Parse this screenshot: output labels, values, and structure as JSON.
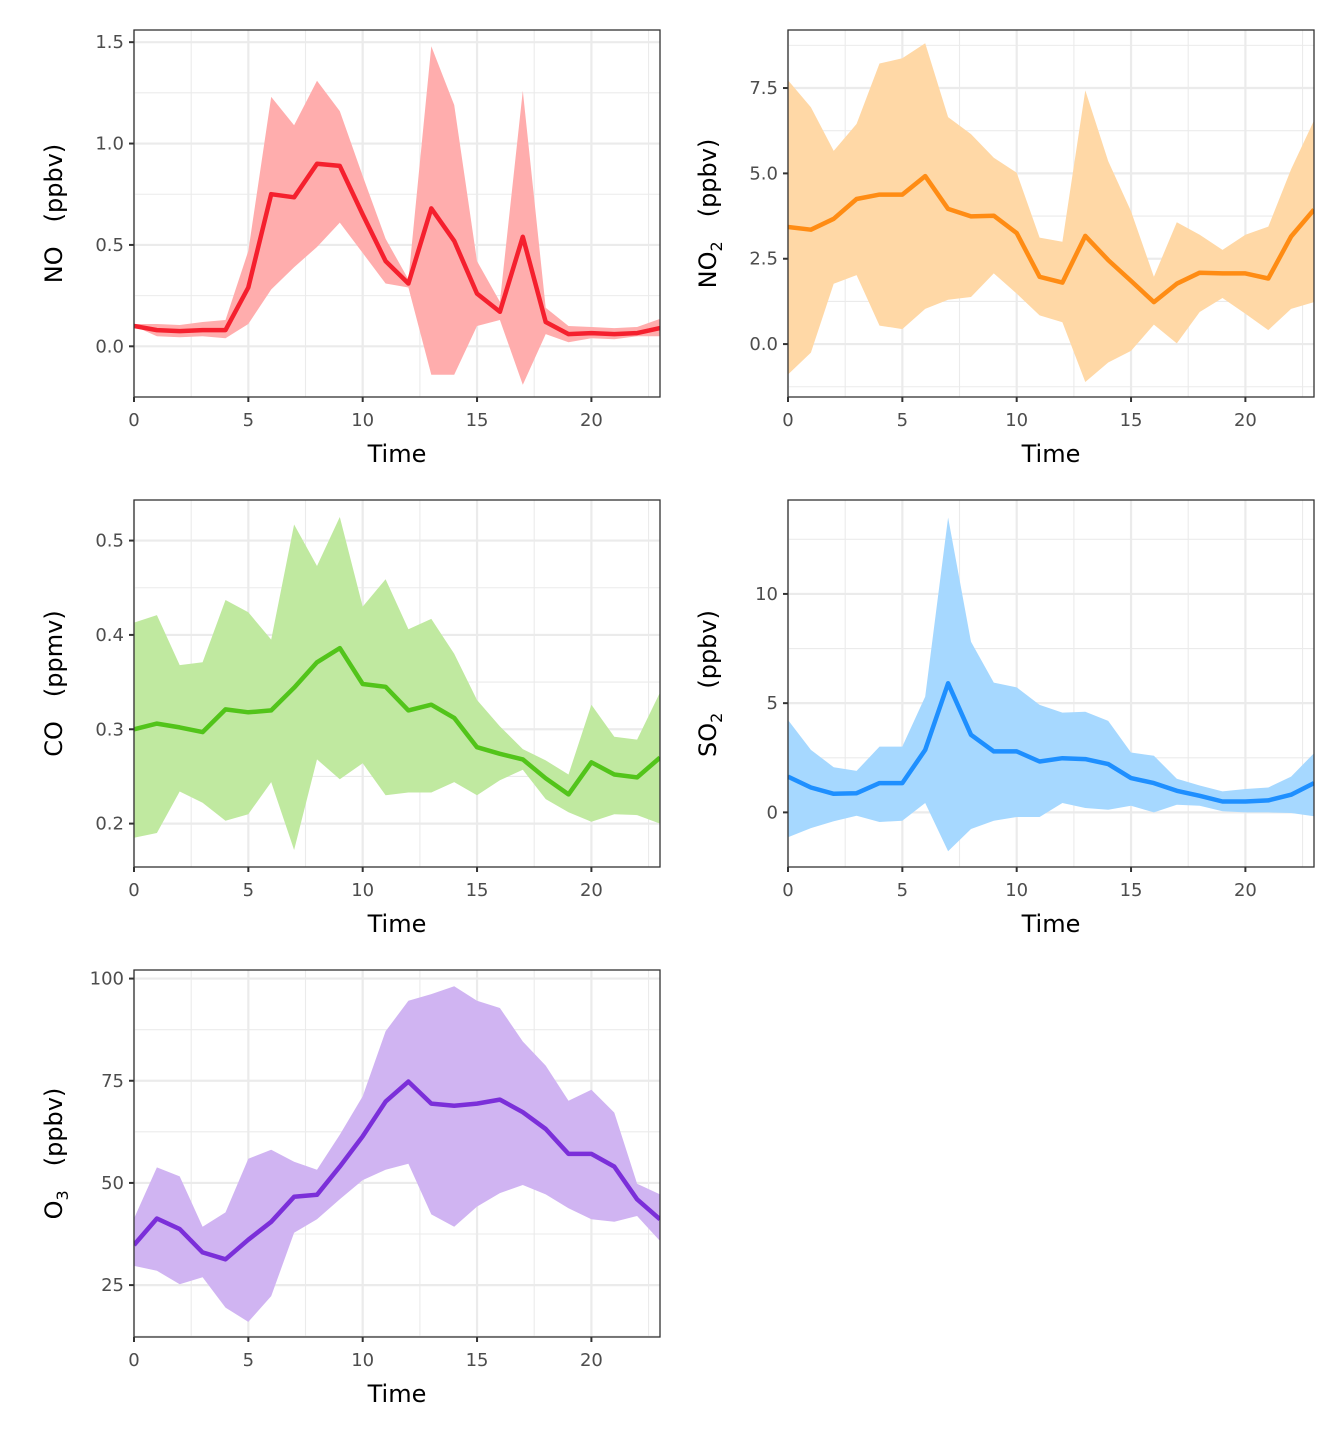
{
  "chart_data": [
    {
      "type": "line",
      "panel": "NO",
      "ylabel_species": "NO",
      "ylabel_subscript": "",
      "ylabel_unit": "(ppbv)",
      "xlabel": "Time",
      "xlim": [
        0,
        23
      ],
      "ylim": [
        -0.25,
        1.56
      ],
      "xticks": [
        0,
        5,
        10,
        15,
        20
      ],
      "xtick_labels": [
        "0",
        "5",
        "10",
        "15",
        "20"
      ],
      "yticks": [
        0,
        0.5,
        1.0,
        1.5
      ],
      "ytick_labels": [
        "0.0",
        "0.5",
        "1.0",
        "1.5"
      ],
      "grid": true,
      "line_color": "#f5202e",
      "fill_color": "#ffadad",
      "x": [
        0,
        1,
        2,
        3,
        4,
        5,
        6,
        7,
        8,
        9,
        10,
        11,
        12,
        13,
        14,
        15,
        16,
        17,
        18,
        19,
        20,
        21,
        22,
        23
      ],
      "mean": [
        0.1,
        0.08,
        0.075,
        0.08,
        0.08,
        0.29,
        0.75,
        0.735,
        0.9,
        0.89,
        0.65,
        0.42,
        0.31,
        0.68,
        0.52,
        0.26,
        0.17,
        0.54,
        0.12,
        0.06,
        0.065,
        0.06,
        0.065,
        0.09
      ],
      "upper": [
        0.11,
        0.11,
        0.105,
        0.12,
        0.13,
        0.47,
        1.23,
        1.09,
        1.31,
        1.16,
        0.84,
        0.53,
        0.33,
        1.48,
        1.19,
        0.42,
        0.22,
        1.26,
        0.19,
        0.1,
        0.095,
        0.09,
        0.095,
        0.135
      ],
      "lower": [
        0.1,
        0.05,
        0.045,
        0.05,
        0.04,
        0.11,
        0.28,
        0.39,
        0.49,
        0.61,
        0.46,
        0.31,
        0.29,
        -0.14,
        -0.14,
        0.1,
        0.13,
        -0.19,
        0.06,
        0.02,
        0.04,
        0.035,
        0.05,
        0.05
      ]
    },
    {
      "type": "line",
      "panel": "NO2",
      "ylabel_species": "NO",
      "ylabel_subscript": "2",
      "ylabel_unit": "(ppbv)",
      "xlabel": "Time",
      "xlim": [
        0,
        23
      ],
      "ylim": [
        -1.55,
        9.2
      ],
      "xticks": [
        0,
        5,
        10,
        15,
        20
      ],
      "xtick_labels": [
        "0",
        "5",
        "10",
        "15",
        "20"
      ],
      "yticks": [
        0,
        2.5,
        5.0,
        7.5
      ],
      "ytick_labels": [
        "0.0",
        "2.5",
        "5.0",
        "7.5"
      ],
      "grid": true,
      "line_color": "#ff8c14",
      "fill_color": "#ffd8a6",
      "x": [
        0,
        1,
        2,
        3,
        4,
        5,
        6,
        7,
        8,
        9,
        10,
        11,
        12,
        13,
        14,
        15,
        16,
        17,
        18,
        19,
        20,
        21,
        22,
        23
      ],
      "mean": [
        3.43,
        3.35,
        3.67,
        4.25,
        4.38,
        4.38,
        4.92,
        3.96,
        3.74,
        3.76,
        3.25,
        1.97,
        1.8,
        3.17,
        2.46,
        1.85,
        1.23,
        1.77,
        2.09,
        2.07,
        2.07,
        1.92,
        3.15,
        3.94
      ],
      "upper": [
        7.73,
        6.94,
        5.66,
        6.45,
        8.22,
        8.37,
        8.81,
        6.65,
        6.15,
        5.46,
        5.02,
        3.12,
        3.0,
        7.43,
        5.36,
        3.89,
        1.97,
        3.57,
        3.2,
        2.76,
        3.2,
        3.44,
        5.12,
        6.55
      ],
      "lower": [
        -0.89,
        -0.25,
        1.77,
        2.02,
        0.54,
        0.44,
        1.03,
        1.3,
        1.38,
        2.07,
        1.48,
        0.84,
        0.64,
        -1.11,
        -0.54,
        -0.2,
        0.57,
        0.02,
        0.94,
        1.35,
        0.89,
        0.41,
        1.03,
        1.23
      ]
    },
    {
      "type": "line",
      "panel": "CO",
      "ylabel_species": "CO",
      "ylabel_subscript": "",
      "ylabel_unit": "(ppmv)",
      "xlabel": "Time",
      "xlim": [
        0,
        23
      ],
      "ylim": [
        0.154,
        0.543
      ],
      "xticks": [
        0,
        5,
        10,
        15,
        20
      ],
      "xtick_labels": [
        "0",
        "5",
        "10",
        "15",
        "20"
      ],
      "yticks": [
        0.2,
        0.3,
        0.4,
        0.5
      ],
      "ytick_labels": [
        "0.2",
        "0.3",
        "0.4",
        "0.5"
      ],
      "grid": true,
      "line_color": "#52c41a",
      "fill_color": "#c0e9a0",
      "x": [
        0,
        1,
        2,
        3,
        4,
        5,
        6,
        7,
        8,
        9,
        10,
        11,
        12,
        13,
        14,
        15,
        16,
        17,
        18,
        19,
        20,
        21,
        22,
        23
      ],
      "mean": [
        0.3,
        0.306,
        0.302,
        0.297,
        0.321,
        0.318,
        0.32,
        0.344,
        0.371,
        0.386,
        0.348,
        0.345,
        0.32,
        0.326,
        0.312,
        0.281,
        0.274,
        0.268,
        0.248,
        0.231,
        0.265,
        0.252,
        0.249,
        0.27
      ],
      "upper": [
        0.413,
        0.421,
        0.368,
        0.371,
        0.437,
        0.424,
        0.395,
        0.517,
        0.473,
        0.525,
        0.43,
        0.459,
        0.406,
        0.417,
        0.38,
        0.331,
        0.303,
        0.279,
        0.267,
        0.252,
        0.326,
        0.292,
        0.289,
        0.339
      ],
      "lower": [
        0.185,
        0.19,
        0.234,
        0.222,
        0.203,
        0.21,
        0.244,
        0.172,
        0.268,
        0.247,
        0.264,
        0.23,
        0.233,
        0.233,
        0.244,
        0.23,
        0.246,
        0.257,
        0.226,
        0.212,
        0.202,
        0.21,
        0.209,
        0.2
      ]
    },
    {
      "type": "line",
      "panel": "SO2",
      "ylabel_species": "SO",
      "ylabel_subscript": "2",
      "ylabel_unit": "(ppbv)",
      "xlabel": "Time",
      "xlim": [
        0,
        23
      ],
      "ylim": [
        -2.5,
        14.3
      ],
      "xticks": [
        0,
        5,
        10,
        15,
        20
      ],
      "xtick_labels": [
        "0",
        "5",
        "10",
        "15",
        "20"
      ],
      "yticks": [
        0,
        5,
        10
      ],
      "ytick_labels": [
        "0",
        "5",
        "10"
      ],
      "grid": true,
      "line_color": "#1e8fff",
      "fill_color": "#a6d8ff",
      "x": [
        0,
        1,
        2,
        3,
        4,
        5,
        6,
        7,
        8,
        9,
        10,
        11,
        12,
        13,
        14,
        15,
        16,
        17,
        18,
        19,
        20,
        21,
        22,
        23
      ],
      "mean": [
        1.64,
        1.14,
        0.85,
        0.88,
        1.34,
        1.34,
        2.86,
        5.91,
        3.55,
        2.79,
        2.79,
        2.33,
        2.48,
        2.44,
        2.21,
        1.57,
        1.34,
        0.99,
        0.76,
        0.5,
        0.5,
        0.55,
        0.81,
        1.34
      ],
      "upper": [
        4.23,
        2.86,
        2.07,
        1.9,
        3.01,
        3.01,
        5.3,
        13.5,
        7.81,
        5.94,
        5.72,
        4.92,
        4.57,
        4.61,
        4.19,
        2.74,
        2.59,
        1.54,
        1.23,
        0.96,
        1.07,
        1.14,
        1.64,
        2.71
      ],
      "lower": [
        -1.14,
        -0.72,
        -0.41,
        -0.15,
        -0.44,
        -0.38,
        0.43,
        -1.78,
        -0.76,
        -0.38,
        -0.21,
        -0.21,
        0.43,
        0.2,
        0.12,
        0.3,
        0.0,
        0.35,
        0.3,
        0.05,
        0.0,
        0.0,
        -0.03,
        -0.18
      ]
    },
    {
      "type": "line",
      "panel": "O3",
      "ylabel_species": "O",
      "ylabel_subscript": "3",
      "ylabel_unit": "(ppbv)",
      "xlabel": "Time",
      "xlim": [
        0,
        23
      ],
      "ylim": [
        12.3,
        102.1
      ],
      "xticks": [
        0,
        5,
        10,
        15,
        20
      ],
      "xtick_labels": [
        "0",
        "5",
        "10",
        "15",
        "20"
      ],
      "yticks": [
        25,
        50,
        75,
        100
      ],
      "ytick_labels": [
        "25",
        "50",
        "75",
        "100"
      ],
      "grid": true,
      "line_color": "#7b2fd9",
      "fill_color": "#d0b4f2",
      "x": [
        0,
        1,
        2,
        3,
        4,
        5,
        6,
        7,
        8,
        9,
        10,
        11,
        12,
        13,
        14,
        15,
        16,
        17,
        18,
        19,
        20,
        21,
        22,
        23
      ],
      "mean": [
        34.8,
        41.3,
        38.7,
        33.0,
        31.3,
        36.1,
        40.5,
        46.6,
        47.1,
        54.0,
        61.4,
        69.9,
        74.8,
        69.4,
        68.9,
        69.4,
        70.4,
        67.3,
        63.2,
        57.1,
        57.1,
        54.0,
        46.0,
        41.1
      ],
      "upper": [
        41.3,
        53.8,
        51.6,
        39.3,
        42.8,
        55.9,
        58.1,
        55.2,
        53.2,
        61.8,
        71.2,
        87.1,
        94.6,
        96.2,
        98.1,
        94.6,
        92.8,
        84.6,
        78.7,
        70.1,
        72.8,
        67.2,
        49.8,
        47.2
      ],
      "lower": [
        29.7,
        28.5,
        25.2,
        26.9,
        19.5,
        16.0,
        22.3,
        37.8,
        41.1,
        46.0,
        50.7,
        53.2,
        54.7,
        42.3,
        39.3,
        44.2,
        47.5,
        49.5,
        47.2,
        43.8,
        41.1,
        40.5,
        41.9,
        35.8
      ]
    }
  ]
}
